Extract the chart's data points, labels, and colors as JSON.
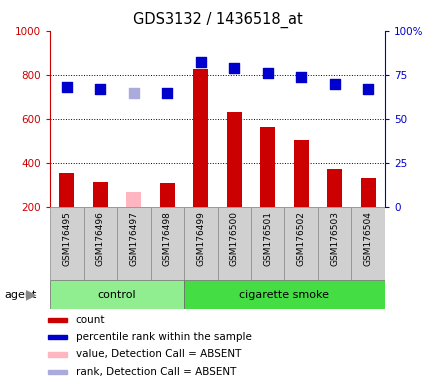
{
  "title": "GDS3132 / 1436518_at",
  "samples": [
    "GSM176495",
    "GSM176496",
    "GSM176497",
    "GSM176498",
    "GSM176499",
    "GSM176500",
    "GSM176501",
    "GSM176502",
    "GSM176503",
    "GSM176504"
  ],
  "bar_values": [
    355,
    315,
    null,
    310,
    825,
    630,
    565,
    505,
    375,
    335
  ],
  "absent_bar_value": 270,
  "absent_bar_index": 2,
  "rank_values": [
    745,
    738,
    718,
    718,
    858,
    832,
    810,
    790,
    758,
    738
  ],
  "rank_absent_index": 2,
  "ylim_left": [
    200,
    1000
  ],
  "ylim_right": [
    0,
    100
  ],
  "yticks_left": [
    200,
    400,
    600,
    800,
    1000
  ],
  "yticks_right": [
    0,
    25,
    50,
    75,
    100
  ],
  "bar_width": 0.45,
  "dot_size": 55,
  "left_axis_color": "#cc0000",
  "right_axis_color": "#0000cc",
  "bar_color": "#cc0000",
  "absent_bar_color": "#ffb6c1",
  "rank_color": "#0000cc",
  "rank_absent_color": "#aaaadd",
  "grid_color": "black",
  "cell_color": "#d0d0d0",
  "ctrl_color": "#90ee90",
  "smoke_color": "#44dd44",
  "legend_items": [
    {
      "label": "count",
      "color": "#cc0000"
    },
    {
      "label": "percentile rank within the sample",
      "color": "#0000cc"
    },
    {
      "label": "value, Detection Call = ABSENT",
      "color": "#ffb6c1"
    },
    {
      "label": "rank, Detection Call = ABSENT",
      "color": "#aaaadd"
    }
  ]
}
